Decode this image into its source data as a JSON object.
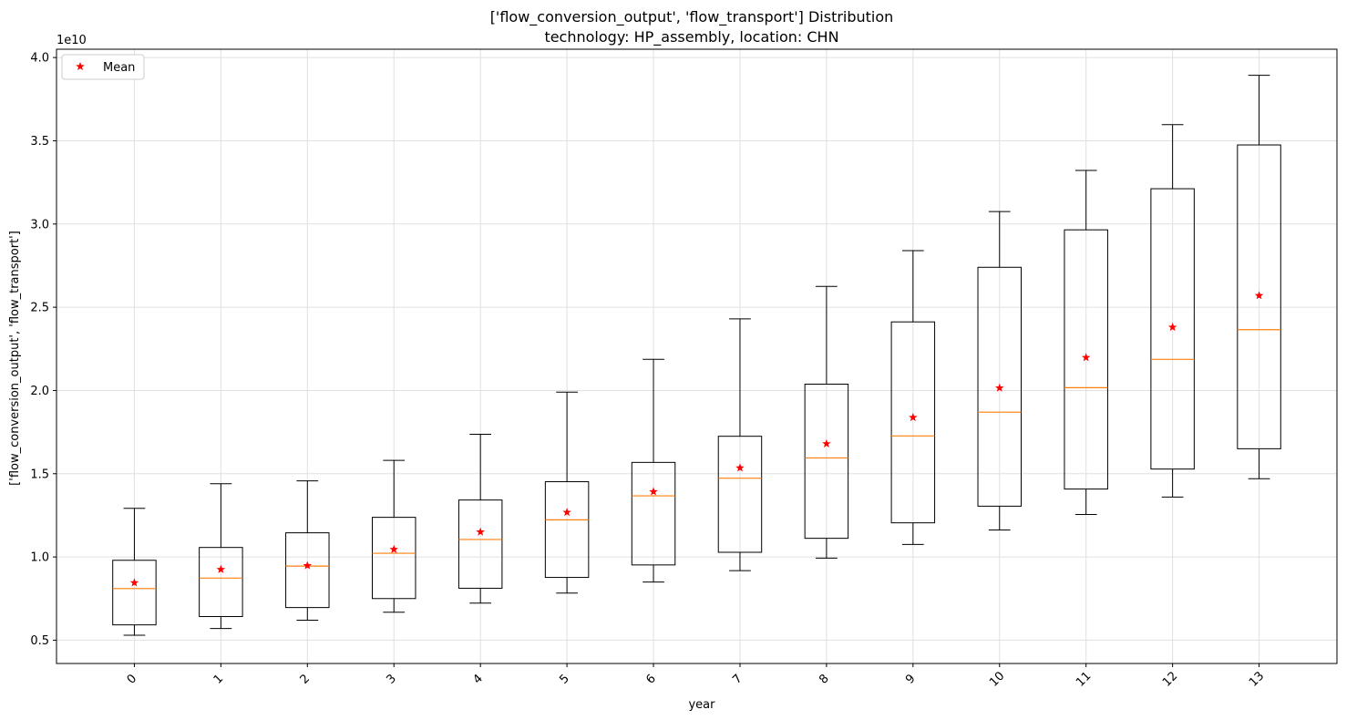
{
  "chart_data": {
    "type": "boxplot",
    "title": "['flow_conversion_output', 'flow_transport'] Distribution",
    "subtitle": "technology: HP_assembly, location: CHN",
    "xlabel": "year",
    "ylabel": "['flow_conversion_output', 'flow_transport']",
    "y_multiplier_label": "1e10",
    "ylim": [
      0.36,
      4.05
    ],
    "y_ticks": [
      "0.5",
      "1.0",
      "1.5",
      "2.0",
      "2.5",
      "3.0",
      "3.5",
      "4.0"
    ],
    "y_tick_values": [
      0.5,
      1.0,
      1.5,
      2.0,
      2.5,
      3.0,
      3.5,
      4.0
    ],
    "categories": [
      "0",
      "1",
      "2",
      "3",
      "4",
      "5",
      "6",
      "7",
      "8",
      "9",
      "10",
      "11",
      "12",
      "13"
    ],
    "grid": true,
    "legend_position": "top-left",
    "series": [
      {
        "name": "Mean",
        "color": "#ff0000",
        "marker": "star",
        "values": [
          0.845,
          0.925,
          0.948,
          1.045,
          1.15,
          1.268,
          1.392,
          1.535,
          1.68,
          1.838,
          2.015,
          2.198,
          2.38,
          2.57
        ]
      }
    ],
    "boxes": [
      {
        "whisker_low": 0.53,
        "q1": 0.592,
        "median": 0.81,
        "q3": 0.98,
        "whisker_high": 1.292
      },
      {
        "whisker_low": 0.57,
        "q1": 0.642,
        "median": 0.873,
        "q3": 1.057,
        "whisker_high": 1.44
      },
      {
        "whisker_low": 0.62,
        "q1": 0.696,
        "median": 0.945,
        "q3": 1.145,
        "whisker_high": 1.457
      },
      {
        "whisker_low": 0.668,
        "q1": 0.75,
        "median": 1.022,
        "q3": 1.238,
        "whisker_high": 1.58
      },
      {
        "whisker_low": 0.723,
        "q1": 0.812,
        "median": 1.105,
        "q3": 1.342,
        "whisker_high": 1.737
      },
      {
        "whisker_low": 0.783,
        "q1": 0.877,
        "median": 1.223,
        "q3": 1.452,
        "whisker_high": 1.99
      },
      {
        "whisker_low": 0.849,
        "q1": 0.952,
        "median": 1.367,
        "q3": 1.568,
        "whisker_high": 2.187
      },
      {
        "whisker_low": 0.918,
        "q1": 1.028,
        "median": 1.473,
        "q3": 1.725,
        "whisker_high": 2.43
      },
      {
        "whisker_low": 0.993,
        "q1": 1.112,
        "median": 1.595,
        "q3": 2.038,
        "whisker_high": 2.625
      },
      {
        "whisker_low": 1.075,
        "q1": 1.205,
        "median": 1.727,
        "q3": 2.412,
        "whisker_high": 2.84
      },
      {
        "whisker_low": 1.162,
        "q1": 1.305,
        "median": 1.87,
        "q3": 2.74,
        "whisker_high": 3.075
      },
      {
        "whisker_low": 1.255,
        "q1": 1.408,
        "median": 2.017,
        "q3": 2.965,
        "whisker_high": 3.322
      },
      {
        "whisker_low": 1.36,
        "q1": 1.528,
        "median": 2.187,
        "q3": 3.212,
        "whisker_high": 3.597
      },
      {
        "whisker_low": 1.47,
        "q1": 1.65,
        "median": 2.365,
        "q3": 3.475,
        "whisker_high": 3.893
      }
    ],
    "colors": {
      "box": "#000000",
      "median": "#ff7f0e",
      "mean": "#ff0000",
      "grid": "#e0e0e0"
    }
  }
}
